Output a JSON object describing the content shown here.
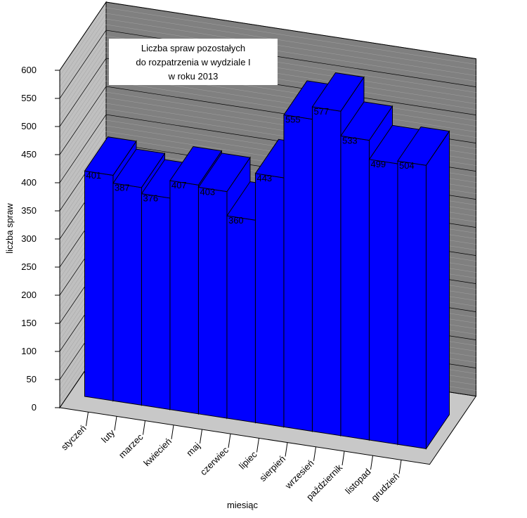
{
  "chart_data": {
    "type": "bar3d",
    "title": [
      "Liczba spraw pozostałych",
      "do rozpatrzenia w  wydziale I",
      "w roku 2013"
    ],
    "xlabel": "miesiąc",
    "ylabel": "liczba spraw",
    "categories": [
      "styczeń",
      "luty",
      "marzec",
      "kwiecień",
      "maj",
      "czerwiec",
      "lipiec",
      "sierpień",
      "wrzesień",
      "październik",
      "listopad",
      "grudzień"
    ],
    "values": [
      401,
      387,
      376,
      407,
      403,
      360,
      443,
      555,
      577,
      533,
      499,
      504
    ],
    "color": "#0000ff",
    "ylim": [
      0,
      600
    ],
    "yticks": [
      0,
      50,
      100,
      150,
      200,
      250,
      300,
      350,
      400,
      450,
      500,
      550,
      600
    ],
    "grid": true
  }
}
